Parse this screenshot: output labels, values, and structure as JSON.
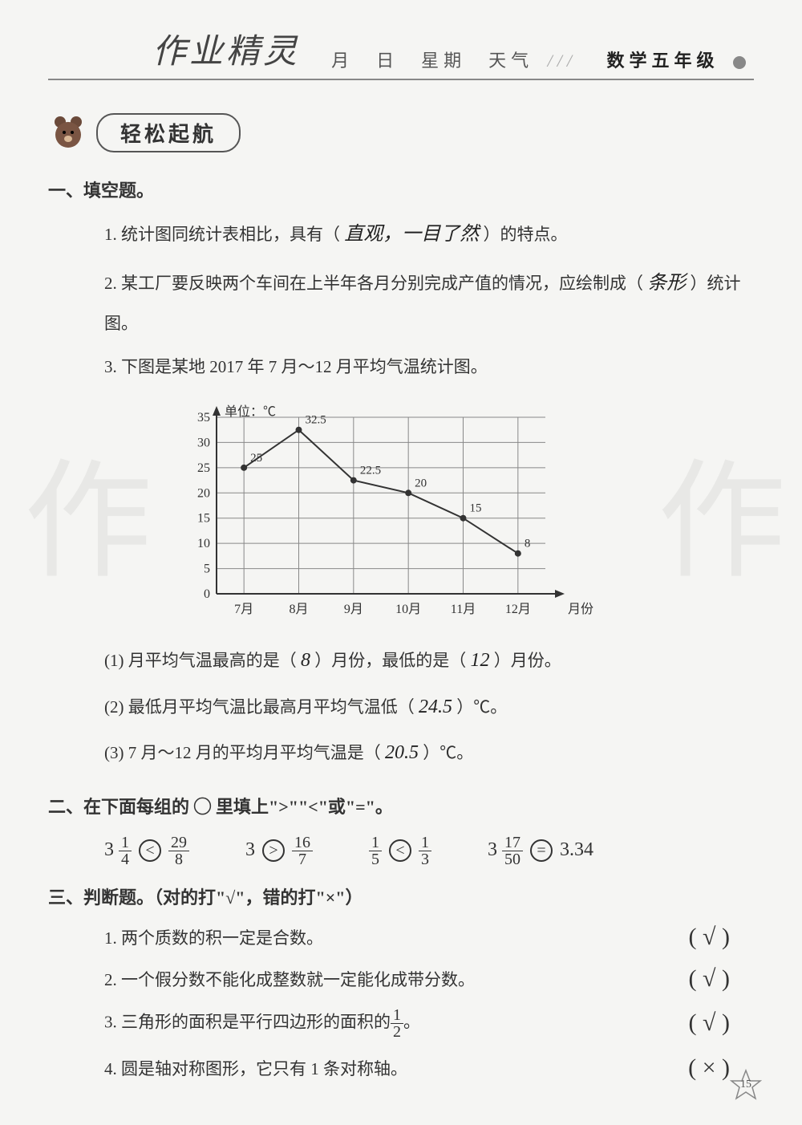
{
  "header": {
    "handwriting_title": "作业精灵",
    "labels": "月　日　星期　天气",
    "hatch": "///",
    "grade": "数学五年级"
  },
  "section_badge": "轻松起航",
  "s1": {
    "heading": "一、填空题。",
    "q1_prefix": "1. 统计图同统计表相比，具有（",
    "q1_answer": "直观，一目了然",
    "q1_suffix": "）的特点。",
    "q2_prefix": "2. 某工厂要反映两个车间在上半年各月分别完成产值的情况，应绘制成（",
    "q2_answer": "条形",
    "q2_suffix": "）统计图。",
    "q3": "3. 下图是某地 2017 年 7 月～12 月平均气温统计图。",
    "chart": {
      "type": "line",
      "unit_label": "单位：℃",
      "x_label": "月份",
      "x_ticks": [
        "7月",
        "8月",
        "9月",
        "10月",
        "11月",
        "12月"
      ],
      "y_ticks": [
        0,
        5,
        10,
        15,
        20,
        25,
        30,
        35
      ],
      "ylim": [
        0,
        35
      ],
      "values": [
        25,
        32.5,
        22.5,
        20,
        15,
        8
      ],
      "point_labels": [
        "25",
        "32.5",
        "22.5",
        "20",
        "15",
        "8"
      ],
      "line_color": "#333333",
      "grid_color": "#888888",
      "background_color": "#f5f5f3",
      "tick_fontsize": 16,
      "label_fontsize": 16
    },
    "sub1_prefix": "(1) 月平均气温最高的是（",
    "sub1_a1": "8",
    "sub1_mid": "）月份，最低的是（",
    "sub1_a2": "12",
    "sub1_suffix": "）月份。",
    "sub2_prefix": "(2) 最低月平均气温比最高月平均气温低（",
    "sub2_answer": "24.5",
    "sub2_suffix": "）℃。",
    "sub3_prefix": "(3) 7 月～12 月的平均月平均气温是（",
    "sub3_answer": "20.5",
    "sub3_suffix": "）℃。"
  },
  "s2": {
    "heading": "二、在下面每组的 ◯ 里填上\">\"\"<\"或\"=\"。",
    "items": [
      {
        "left_whole": "3",
        "left_num": "1",
        "left_den": "4",
        "op": "<",
        "right_num": "29",
        "right_den": "8"
      },
      {
        "left_whole": "3",
        "op": ">",
        "right_num": "16",
        "right_den": "7"
      },
      {
        "left_num": "1",
        "left_den": "5",
        "op": "<",
        "right_num": "1",
        "right_den": "3"
      },
      {
        "left_whole": "3",
        "left_num": "17",
        "left_den": "50",
        "op": "=",
        "right_plain": "3.34"
      }
    ]
  },
  "s3": {
    "heading": "三、判断题。（对的打\"√\"，错的打\"×\"）",
    "items": [
      {
        "text": "1. 两个质数的积一定是合数。",
        "mark": "√"
      },
      {
        "text": "2. 一个假分数不能化成整数就一定能化成带分数。",
        "mark": "√"
      },
      {
        "text_prefix": "3. 三角形的面积是平行四边形的面积的",
        "frac_num": "1",
        "frac_den": "2",
        "text_suffix": "。",
        "mark": "√"
      },
      {
        "text": "4. 圆是轴对称图形，它只有 1 条对称轴。",
        "mark": "×"
      }
    ]
  },
  "page_number": "15",
  "watermark_text": "作"
}
